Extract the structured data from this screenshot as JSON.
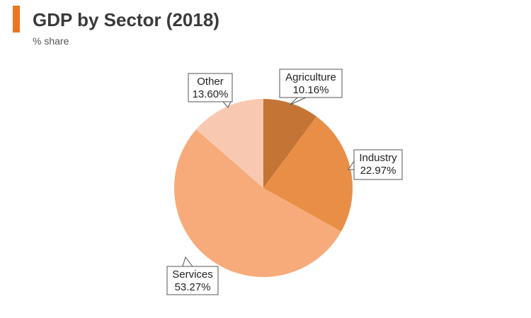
{
  "header": {
    "title": "GDP by Sector (2018)",
    "subtitle": "% share"
  },
  "colors": {
    "accent": "#e87722"
  },
  "chart_data": {
    "type": "pie",
    "title": "GDP by Sector (2018)",
    "subtitle": "% share",
    "legend": "none",
    "slices": [
      {
        "label": "Agriculture",
        "value": 10.16,
        "display": "10.16%",
        "color": "#c47434"
      },
      {
        "label": "Industry",
        "value": 22.97,
        "display": "22.97%",
        "color": "#e98e47"
      },
      {
        "label": "Services",
        "value": 53.27,
        "display": "53.27%",
        "color": "#f7ab7a"
      },
      {
        "label": "Other",
        "value": 13.6,
        "display": "13.60%",
        "color": "#f8c9b0"
      }
    ]
  }
}
